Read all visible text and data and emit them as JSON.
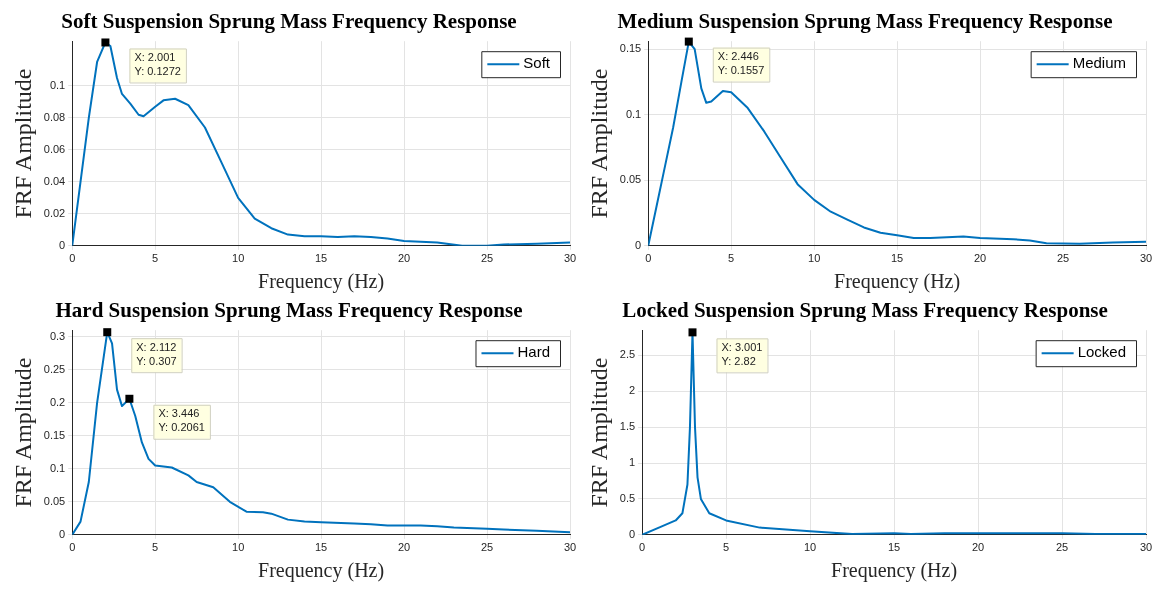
{
  "chart_data": [
    {
      "type": "line",
      "title": "Soft Suspension Sprung Mass Frequency Response",
      "xlabel": "Frequency (Hz)",
      "ylabel": "FRF Amplitude",
      "xlim": [
        0,
        30
      ],
      "ylim": [
        0,
        0.128
      ],
      "xticks": [
        0,
        5,
        10,
        15,
        20,
        25,
        30
      ],
      "yticks": [
        0,
        0.02,
        0.04,
        0.06,
        0.08,
        0.1
      ],
      "grid": true,
      "legend": "top right",
      "x": [
        0,
        0.5,
        1,
        1.5,
        2.001,
        2.3,
        2.7,
        3,
        3.5,
        4,
        4.3,
        5,
        5.5,
        6.2,
        7,
        8,
        9,
        10,
        11,
        12,
        13,
        14,
        15,
        16,
        17,
        18,
        19,
        20,
        22,
        23.5,
        25,
        26,
        28,
        30
      ],
      "series": [
        {
          "name": "Soft",
          "color": "#0072bd",
          "values": [
            0,
            0.04,
            0.08,
            0.115,
            0.1272,
            0.125,
            0.105,
            0.095,
            0.089,
            0.082,
            0.081,
            0.087,
            0.091,
            0.092,
            0.088,
            0.074,
            0.052,
            0.03,
            0.017,
            0.011,
            0.007,
            0.006,
            0.006,
            0.0055,
            0.006,
            0.0055,
            0.0045,
            0.003,
            0.002,
            0,
            0,
            0.0008,
            0.0013,
            0.002
          ]
        }
      ],
      "annotations": [
        {
          "text": "X: 2.001\nY: 0.1272",
          "x": 2.001,
          "y": 0.1272
        }
      ]
    },
    {
      "type": "line",
      "title": "Medium Suspension Sprung Mass Frequency Response",
      "xlabel": "Frequency (Hz)",
      "ylabel": "FRF Amplitude",
      "xlim": [
        0,
        30
      ],
      "ylim": [
        0,
        0.156
      ],
      "xticks": [
        0,
        5,
        10,
        15,
        20,
        25,
        30
      ],
      "yticks": [
        0,
        0.05,
        0.1,
        0.15
      ],
      "grid": true,
      "legend": "top right",
      "x": [
        0,
        0.5,
        1,
        1.5,
        2,
        2.446,
        2.8,
        3.2,
        3.5,
        3.8,
        4.5,
        5,
        6,
        7,
        8,
        9,
        10,
        11,
        12,
        13,
        14,
        15,
        16,
        17,
        19,
        20,
        22,
        23,
        24,
        26,
        28,
        30
      ],
      "series": [
        {
          "name": "Medium",
          "color": "#0072bd",
          "values": [
            0,
            0.03,
            0.06,
            0.09,
            0.125,
            0.1557,
            0.15,
            0.12,
            0.109,
            0.11,
            0.118,
            0.117,
            0.105,
            0.087,
            0.067,
            0.047,
            0.035,
            0.026,
            0.02,
            0.014,
            0.01,
            0.008,
            0.006,
            0.006,
            0.007,
            0.006,
            0.005,
            0.004,
            0.002,
            0.0015,
            0.0025,
            0.003
          ]
        }
      ],
      "annotations": [
        {
          "text": "X: 2.446\nY: 0.1557",
          "x": 2.446,
          "y": 0.1557
        }
      ]
    },
    {
      "type": "line",
      "title": "Hard Suspension Sprung Mass Frequency Response",
      "xlabel": "Frequency (Hz)",
      "ylabel": "FRF Amplitude",
      "xlim": [
        0,
        30
      ],
      "ylim": [
        0,
        0.31
      ],
      "xticks": [
        0,
        5,
        10,
        15,
        20,
        25,
        30
      ],
      "yticks": [
        0,
        0.05,
        0.1,
        0.15,
        0.2,
        0.25,
        0.3
      ],
      "grid": true,
      "legend": "top right",
      "x": [
        0,
        0.5,
        1,
        1.5,
        2.112,
        2.4,
        2.7,
        3,
        3.446,
        3.8,
        4.2,
        4.6,
        5,
        6,
        7,
        7.5,
        8.5,
        9.5,
        10.5,
        11.5,
        12,
        13,
        14,
        15,
        17,
        18,
        19,
        21,
        22,
        23,
        25,
        26,
        28,
        30
      ],
      "series": [
        {
          "name": "Hard",
          "color": "#0072bd",
          "values": [
            0,
            0.02,
            0.08,
            0.2,
            0.307,
            0.29,
            0.22,
            0.195,
            0.2061,
            0.18,
            0.14,
            0.115,
            0.105,
            0.102,
            0.09,
            0.08,
            0.072,
            0.05,
            0.035,
            0.034,
            0.032,
            0.023,
            0.02,
            0.019,
            0.017,
            0.016,
            0.014,
            0.014,
            0.013,
            0.011,
            0.009,
            0.008,
            0.006,
            0.004
          ]
        }
      ],
      "annotations": [
        {
          "text": "X: 2.112\nY: 0.307",
          "x": 2.112,
          "y": 0.307
        },
        {
          "text": "X: 3.446\nY: 0.2061",
          "x": 3.446,
          "y": 0.2061
        }
      ]
    },
    {
      "type": "line",
      "title": "Locked Suspension Sprung Mass Frequency Response",
      "xlabel": "Frequency (Hz)",
      "ylabel": "FRF Amplitude",
      "xlim": [
        0,
        30
      ],
      "ylim": [
        0,
        2.85
      ],
      "xticks": [
        0,
        5,
        10,
        15,
        20,
        25,
        30
      ],
      "yticks": [
        0,
        0.5,
        1,
        1.5,
        2,
        2.5
      ],
      "grid": true,
      "legend": "top right",
      "x": [
        0,
        1,
        2,
        2.4,
        2.7,
        2.85,
        3.001,
        3.15,
        3.3,
        3.5,
        4,
        5,
        7,
        10,
        12.5,
        15,
        16,
        18,
        22,
        25,
        27,
        30
      ],
      "series": [
        {
          "name": "Locked",
          "color": "#0072bd",
          "values": [
            0,
            0.1,
            0.2,
            0.3,
            0.7,
            1.5,
            2.82,
            1.5,
            0.8,
            0.5,
            0.3,
            0.2,
            0.1,
            0.05,
            0.01,
            0.02,
            0.01,
            0.02,
            0.02,
            0.02,
            0.01,
            0.01
          ]
        }
      ],
      "annotations": [
        {
          "text": "X: 3.001\nY: 2.82",
          "x": 3.001,
          "y": 2.82
        }
      ]
    }
  ]
}
